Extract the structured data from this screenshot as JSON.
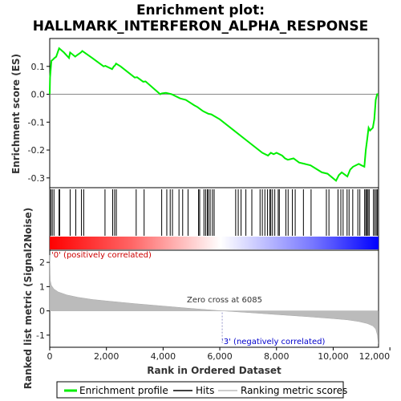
{
  "chart_data": {
    "type": "line",
    "title_line1": "Enrichment plot:",
    "title_line2": "HALLMARK_INTERFERON_ALPHA_RESPONSE",
    "es_panel": {
      "ylabel": "Enrichment score (ES)",
      "ylim": [
        -0.335,
        0.2
      ],
      "yticks": [
        0.1,
        0.0,
        -0.1,
        -0.2,
        -0.3
      ],
      "ytick_labels": [
        "0.1",
        "0.0",
        "-0.1",
        "-0.2",
        "-0.3"
      ],
      "series": [
        {
          "name": "Enrichment profile",
          "color": "#00ee00",
          "x": [
            0,
            10,
            60,
            120,
            170,
            230,
            330,
            500,
            680,
            720,
            900,
            960,
            1100,
            1150,
            1500,
            1900,
            1960,
            2200,
            2260,
            2300,
            2340,
            2500,
            3000,
            3080,
            3300,
            3380,
            3900,
            3950,
            4100,
            4300,
            4600,
            4800,
            5100,
            5200,
            5400,
            5600,
            5700,
            6000,
            6500,
            7000,
            7500,
            7700,
            7800,
            7900,
            8000,
            8200,
            8300,
            8400,
            8600,
            8800,
            9000,
            9200,
            9600,
            9800,
            10100,
            10200,
            10300,
            10500,
            10600,
            10700,
            10900,
            11000,
            11100,
            11150,
            11200,
            11250,
            11300,
            11400,
            11450,
            11500,
            11550,
            11590
          ],
          "y": [
            0.0,
            0.06,
            0.12,
            0.125,
            0.13,
            0.135,
            0.165,
            0.15,
            0.13,
            0.15,
            0.135,
            0.14,
            0.15,
            0.155,
            0.13,
            0.1,
            0.102,
            0.09,
            0.1,
            0.103,
            0.11,
            0.1,
            0.06,
            0.061,
            0.045,
            0.046,
            0.0,
            0.003,
            0.005,
            0.0,
            -0.015,
            -0.02,
            -0.04,
            -0.045,
            -0.06,
            -0.07,
            -0.072,
            -0.09,
            -0.13,
            -0.17,
            -0.21,
            -0.22,
            -0.21,
            -0.215,
            -0.21,
            -0.22,
            -0.23,
            -0.235,
            -0.23,
            -0.245,
            -0.25,
            -0.255,
            -0.28,
            -0.285,
            -0.31,
            -0.29,
            -0.28,
            -0.295,
            -0.27,
            -0.26,
            -0.25,
            -0.255,
            -0.26,
            -0.2,
            -0.16,
            -0.12,
            -0.13,
            -0.12,
            -0.09,
            -0.02,
            0.0,
            0.0
          ]
        }
      ]
    },
    "hits": {
      "legend": "Hits",
      "x": [
        40,
        90,
        150,
        330,
        350,
        720,
        920,
        1120,
        1200,
        1950,
        2220,
        2290,
        2350,
        3050,
        3330,
        3950,
        4130,
        4250,
        4330,
        4560,
        4690,
        4880,
        5250,
        5290,
        5440,
        5500,
        5560,
        5600,
        5660,
        5740,
        5800,
        6560,
        6650,
        6750,
        6920,
        7130,
        7420,
        7500,
        7590,
        7680,
        7760,
        7800,
        7860,
        7940,
        8060,
        8100,
        8330,
        8410,
        8560,
        8660,
        8950,
        9220,
        9760,
        9850,
        10170,
        10270,
        10350,
        10490,
        10560,
        10690,
        10870,
        10940,
        11110,
        11150,
        11190,
        11230,
        11270,
        11420,
        11470,
        11520,
        11560
      ]
    },
    "metric_panel": {
      "ylabel": "Ranked list metric (Signal2Noise)",
      "ylim": [
        -1.5,
        2.5
      ],
      "yticks": [
        2,
        1,
        0,
        -1
      ],
      "ytick_labels": [
        "2",
        "1",
        "0",
        "-1"
      ],
      "series": [
        {
          "name": "Ranking metric scores",
          "color": "#bbbbbb",
          "x": [
            0,
            20,
            60,
            150,
            300,
            600,
            1000,
            1500,
            2000,
            3000,
            4000,
            5000,
            6085,
            7000,
            8000,
            9000,
            10000,
            10500,
            10900,
            11200,
            11400,
            11500,
            11560,
            11590
          ],
          "y": [
            2.3,
            1.25,
            1.05,
            0.9,
            0.78,
            0.66,
            0.56,
            0.47,
            0.41,
            0.3,
            0.2,
            0.1,
            0.0,
            -0.07,
            -0.15,
            -0.23,
            -0.32,
            -0.37,
            -0.44,
            -0.52,
            -0.62,
            -0.75,
            -1.0,
            -1.35
          ]
        }
      ]
    },
    "xaxis": {
      "xlabel": "Rank in Ordered Dataset",
      "xlim": [
        0,
        11600
      ],
      "xticks": [
        0,
        2000,
        4000,
        6000,
        8000,
        10000,
        12000
      ],
      "xtick_labels": [
        "0",
        "2,000",
        "4,000",
        "6,000",
        "8,000",
        "10,000",
        "12,000"
      ]
    },
    "annotations": {
      "positive": "'0' (positively correlated)",
      "negative": "'3' (negatively correlated)",
      "zero_cross": "Zero cross at 6085",
      "zero_cross_x": 6085
    },
    "legend": {
      "placement": "bottom",
      "items": [
        {
          "label": "Enrichment profile",
          "color": "#00ee00",
          "kind": "line"
        },
        {
          "label": "Hits",
          "color": "#000000",
          "kind": "line"
        },
        {
          "label": "Ranking metric scores",
          "color": "#bbbbbb",
          "kind": "line"
        }
      ]
    },
    "gradient_colors": {
      "positive": "#ff0000",
      "neutral": "#ffffff",
      "negative": "#0000ff"
    }
  }
}
